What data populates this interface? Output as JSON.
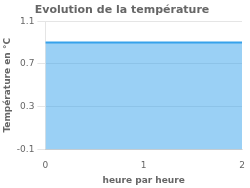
{
  "chart_data": {
    "type": "area",
    "title": "Evolution de la température",
    "xlabel": "heure par heure",
    "ylabel": "Température en °C",
    "x": [
      0,
      2
    ],
    "values": [
      0.9,
      0.9
    ],
    "xlim": [
      0,
      2
    ],
    "xticks": [
      0,
      1,
      2
    ],
    "ylim": [
      -0.1,
      1.1
    ],
    "yticks": [
      -0.1,
      0.3,
      0.7,
      1.1
    ],
    "grid": "y"
  }
}
